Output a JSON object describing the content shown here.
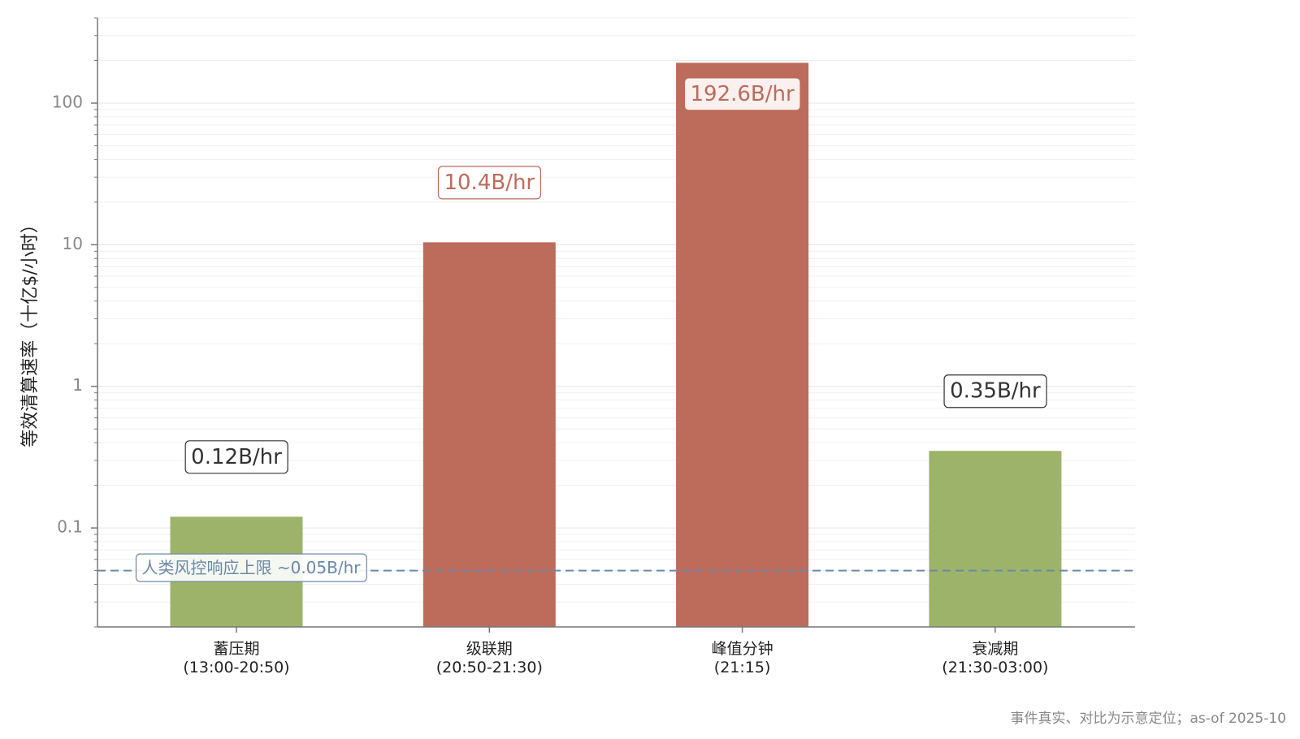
{
  "chart_data": {
    "type": "bar",
    "y_label": "等效清算速率（十亿$/小时）",
    "categories": [
      "蓄压期\n(13:00-20:50)",
      "级联期\n(20:50-21:30)",
      "峰值分钟\n(21:15)",
      "衰减期\n(21:30-03:00)"
    ],
    "values": [
      0.12,
      10.4,
      192.6,
      0.35
    ],
    "value_labels": [
      "0.12B/hr",
      "10.4B/hr",
      "192.6B/hr",
      "0.35B/hr"
    ],
    "colors": [
      "#9db36a",
      "#bd6b5a",
      "#bd6b5a",
      "#9db36a"
    ],
    "label_colors": [
      "#333333",
      "#bd6b5a",
      "#bd6b5a",
      "#333333"
    ],
    "ylim": [
      0.02,
      400
    ],
    "yticks": [
      0.1,
      1,
      10,
      100
    ],
    "log_scale": true,
    "grid": true,
    "minor_grid": true,
    "reference_line": {
      "value": 0.05,
      "label": "人类风控响应上限 ~0.05B/hr",
      "color": "#6b88a8"
    },
    "footnote": "事件真实、对比为示意定位；as-of 2025-10"
  }
}
